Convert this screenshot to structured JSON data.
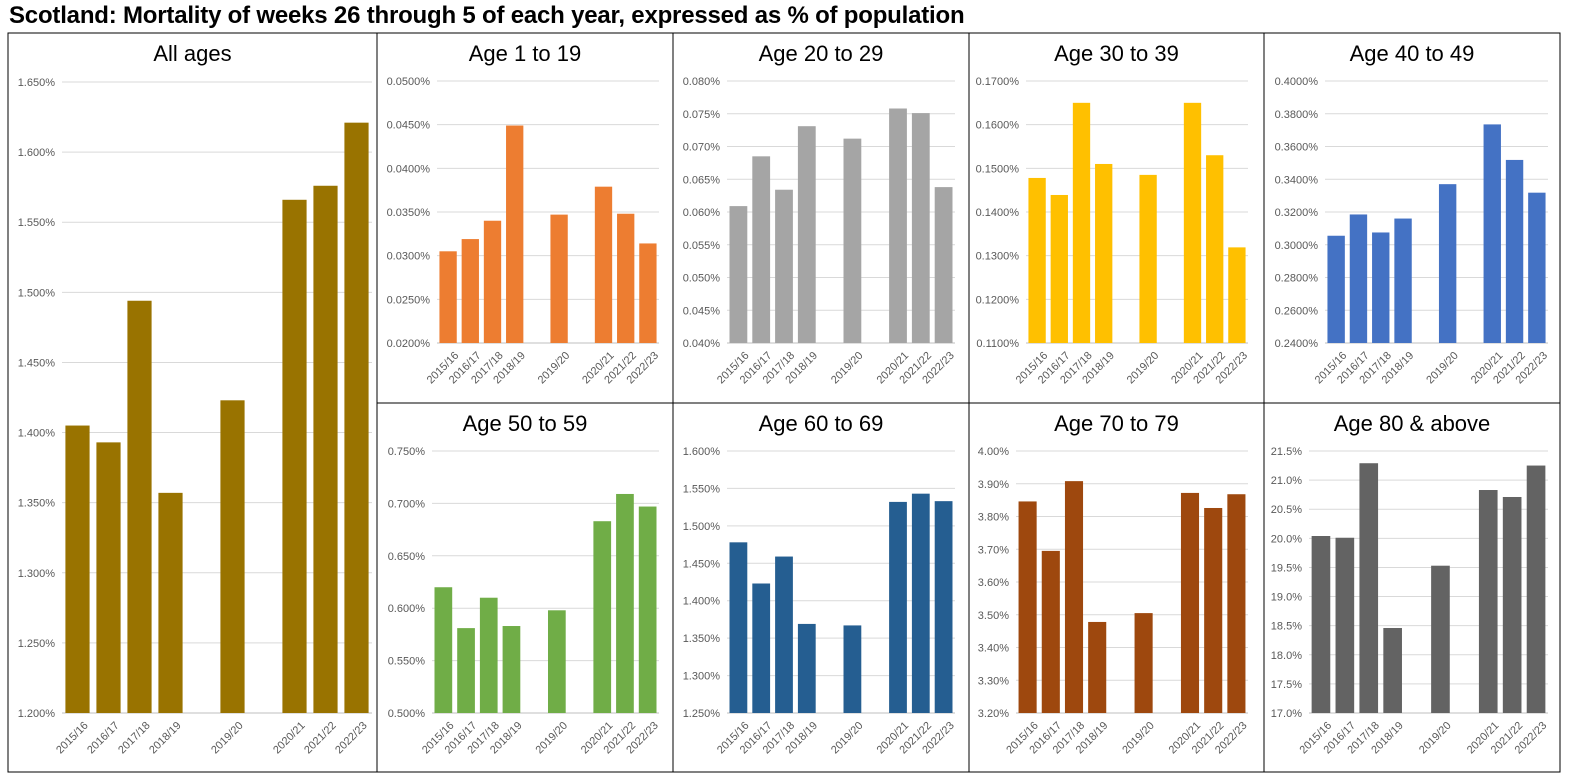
{
  "title": "Scotland: Mortality of weeks 26 through 5 of each year, expressed as % of population",
  "categories": [
    "2015/16",
    "2016/17",
    "2017/18",
    "2018/19",
    "2019/20",
    "2020/21",
    "2021/22",
    "2022/23"
  ],
  "chart_data": [
    {
      "type": "bar",
      "title": "All ages",
      "color": "#997300",
      "categories": [
        "2015/16",
        "2016/17",
        "2017/18",
        "2018/19",
        "2019/20",
        "2020/21",
        "2021/22",
        "2022/23"
      ],
      "values": [
        1.405,
        1.393,
        1.494,
        1.357,
        1.423,
        1.566,
        1.576,
        1.621
      ],
      "ylim": [
        1.2,
        1.65
      ],
      "yticks": [
        "1.200%",
        "1.250%",
        "1.300%",
        "1.350%",
        "1.400%",
        "1.450%",
        "1.500%",
        "1.550%",
        "1.600%",
        "1.650%"
      ],
      "grid": true
    },
    {
      "type": "bar",
      "title": "Age 1 to 19",
      "color": "#ED7D31",
      "categories": [
        "2015/16",
        "2016/17",
        "2017/18",
        "2018/19",
        "2019/20",
        "2020/21",
        "2021/22",
        "2022/23"
      ],
      "values": [
        0.0305,
        0.0319,
        0.034,
        0.0449,
        0.0347,
        0.0379,
        0.0348,
        0.0314
      ],
      "ylim": [
        0.02,
        0.05
      ],
      "yticks": [
        "0.0200%",
        "0.0250%",
        "0.0300%",
        "0.0350%",
        "0.0400%",
        "0.0450%",
        "0.0500%"
      ],
      "grid": true
    },
    {
      "type": "bar",
      "title": "Age 20 to 29",
      "color": "#A5A5A5",
      "categories": [
        "2015/16",
        "2016/17",
        "2017/18",
        "2018/19",
        "2019/20",
        "2020/21",
        "2021/22",
        "2022/23"
      ],
      "values": [
        0.0609,
        0.0685,
        0.0634,
        0.0731,
        0.0712,
        0.0758,
        0.0751,
        0.0638
      ],
      "ylim": [
        0.04,
        0.08
      ],
      "yticks": [
        "0.040%",
        "0.045%",
        "0.050%",
        "0.055%",
        "0.060%",
        "0.065%",
        "0.070%",
        "0.075%",
        "0.080%"
      ],
      "grid": true
    },
    {
      "type": "bar",
      "title": "Age 30 to 39",
      "color": "#FFC000",
      "categories": [
        "2015/16",
        "2016/17",
        "2017/18",
        "2018/19",
        "2019/20",
        "2020/21",
        "2021/22",
        "2022/23"
      ],
      "values": [
        0.1478,
        0.1439,
        0.165,
        0.151,
        0.1485,
        0.165,
        0.153,
        0.1319
      ],
      "ylim": [
        0.11,
        0.17
      ],
      "yticks": [
        "0.1100%",
        "0.1200%",
        "0.1300%",
        "0.1400%",
        "0.1500%",
        "0.1600%",
        "0.1700%"
      ],
      "grid": true
    },
    {
      "type": "bar",
      "title": "Age 40 to 49",
      "color": "#4472C4",
      "categories": [
        "2015/16",
        "2016/17",
        "2017/18",
        "2018/19",
        "2019/20",
        "2020/21",
        "2021/22",
        "2022/23"
      ],
      "values": [
        0.3055,
        0.3185,
        0.3075,
        0.316,
        0.337,
        0.3735,
        0.3518,
        0.3318
      ],
      "ylim": [
        0.24,
        0.4
      ],
      "yticks": [
        "0.2400%",
        "0.2600%",
        "0.2800%",
        "0.3000%",
        "0.3200%",
        "0.3400%",
        "0.3600%",
        "0.3800%",
        "0.4000%"
      ],
      "grid": true
    },
    {
      "type": "bar",
      "title": "Age 50 to 59",
      "color": "#70AD47",
      "categories": [
        "2015/16",
        "2016/17",
        "2017/18",
        "2018/19",
        "2019/20",
        "2020/21",
        "2021/22",
        "2022/23"
      ],
      "values": [
        0.62,
        0.581,
        0.61,
        0.583,
        0.598,
        0.683,
        0.709,
        0.697
      ],
      "ylim": [
        0.5,
        0.75
      ],
      "yticks": [
        "0.500%",
        "0.550%",
        "0.600%",
        "0.650%",
        "0.700%",
        "0.750%"
      ],
      "grid": true
    },
    {
      "type": "bar",
      "title": "Age 60 to 69",
      "color": "#255E91",
      "categories": [
        "2015/16",
        "2016/17",
        "2017/18",
        "2018/19",
        "2019/20",
        "2020/21",
        "2021/22",
        "2022/23"
      ],
      "values": [
        1.478,
        1.423,
        1.459,
        1.369,
        1.367,
        1.532,
        1.543,
        1.533
      ],
      "ylim": [
        1.25,
        1.6
      ],
      "yticks": [
        "1.250%",
        "1.300%",
        "1.350%",
        "1.400%",
        "1.450%",
        "1.500%",
        "1.550%",
        "1.600%"
      ],
      "grid": true
    },
    {
      "type": "bar",
      "title": "Age 70 to 79",
      "color": "#9E480E",
      "categories": [
        "2015/16",
        "2016/17",
        "2017/18",
        "2018/19",
        "2019/20",
        "2020/21",
        "2021/22",
        "2022/23"
      ],
      "values": [
        3.846,
        3.695,
        3.908,
        3.478,
        3.505,
        3.872,
        3.826,
        3.868
      ],
      "ylim": [
        3.2,
        4.0
      ],
      "yticks": [
        "3.20%",
        "3.30%",
        "3.40%",
        "3.50%",
        "3.60%",
        "3.70%",
        "3.80%",
        "3.90%",
        "4.00%"
      ],
      "grid": true
    },
    {
      "type": "bar",
      "title": "Age 80 & above",
      "color": "#636363",
      "categories": [
        "2015/16",
        "2016/17",
        "2017/18",
        "2018/19",
        "2019/20",
        "2020/21",
        "2021/22",
        "2022/23"
      ],
      "values": [
        20.04,
        20.01,
        21.29,
        18.46,
        19.53,
        20.83,
        20.71,
        21.25
      ],
      "ylim": [
        17.0,
        21.5
      ],
      "yticks": [
        "17.0%",
        "17.5%",
        "18.0%",
        "18.5%",
        "19.0%",
        "19.5%",
        "20.0%",
        "20.5%",
        "21.0%",
        "21.5%"
      ],
      "grid": true
    }
  ]
}
